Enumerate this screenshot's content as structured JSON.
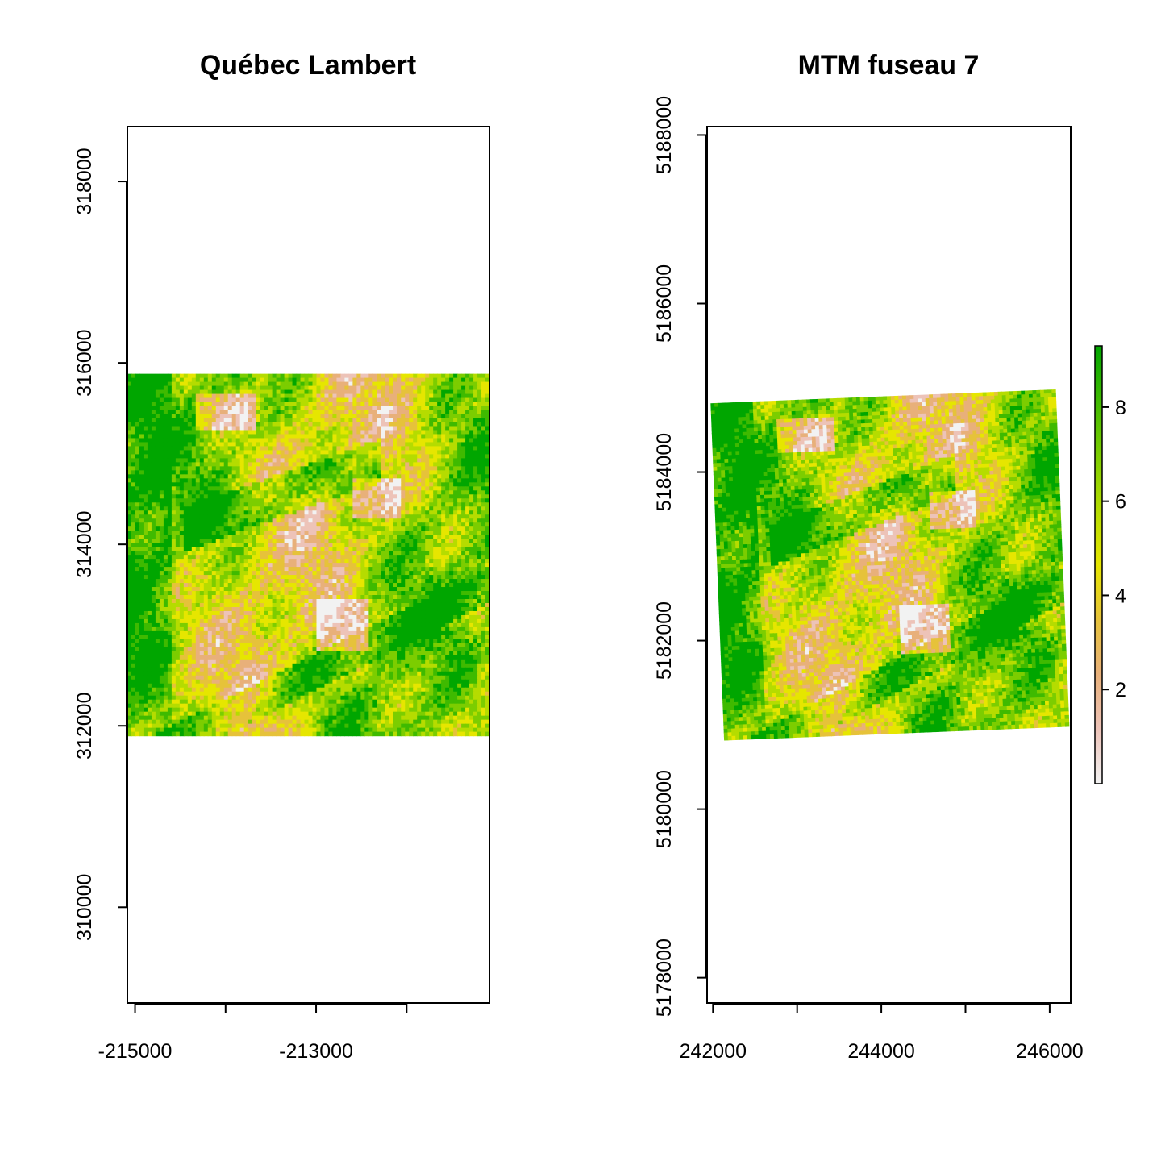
{
  "panels": [
    {
      "id": "left",
      "title": "Québec Lambert",
      "x_ticks": [
        {
          "value": -215000,
          "label": "-215000"
        },
        {
          "value": -214000,
          "label": ""
        },
        {
          "value": -213000,
          "label": "-213000"
        },
        {
          "value": -212000,
          "label": ""
        }
      ],
      "y_ticks": [
        {
          "value": 310000,
          "label": "310000"
        },
        {
          "value": 312000,
          "label": "312000"
        },
        {
          "value": 314000,
          "label": "314000"
        },
        {
          "value": 316000,
          "label": "316000"
        },
        {
          "value": 318000,
          "label": "318000"
        }
      ],
      "xlim": [
        -215085,
        -211085
      ],
      "ylim": [
        308945,
        318605
      ],
      "raster_extent": {
        "xmin": -215085,
        "xmax": -211085,
        "ymin": 311890,
        "ymax": 315880
      },
      "raster_rotation_deg": 0
    },
    {
      "id": "right",
      "title": "MTM fuseau 7",
      "x_ticks": [
        {
          "value": 242000,
          "label": "242000"
        },
        {
          "value": 243000,
          "label": ""
        },
        {
          "value": 244000,
          "label": "244000"
        },
        {
          "value": 245000,
          "label": ""
        },
        {
          "value": 246000,
          "label": "246000"
        }
      ],
      "y_ticks": [
        {
          "value": 5178000,
          "label": "5178000"
        },
        {
          "value": 5180000,
          "label": "5180000"
        },
        {
          "value": 5182000,
          "label": "5182000"
        },
        {
          "value": 5184000,
          "label": "5184000"
        },
        {
          "value": 5186000,
          "label": "5186000"
        },
        {
          "value": 5188000,
          "label": "5188000"
        }
      ],
      "xlim": [
        241930,
        246250
      ],
      "ylim": [
        5177700,
        5188100
      ],
      "raster_extent": {
        "xmin": 242050,
        "xmax": 246150,
        "ymin": 5180900,
        "ymax": 5184900
      },
      "raster_rotation_deg": -2.3
    }
  ],
  "legend": {
    "ticks": [
      {
        "value": 2,
        "label": "2"
      },
      {
        "value": 4,
        "label": "4"
      },
      {
        "value": 6,
        "label": "6"
      },
      {
        "value": 8,
        "label": "8"
      }
    ],
    "range": [
      0,
      9.3
    ],
    "colors": [
      "#f2f2f2",
      "#edc3b8",
      "#e8b07a",
      "#e6c23a",
      "#e6e600",
      "#b5dc00",
      "#7ccd00",
      "#3fba00",
      "#00a600"
    ]
  }
}
